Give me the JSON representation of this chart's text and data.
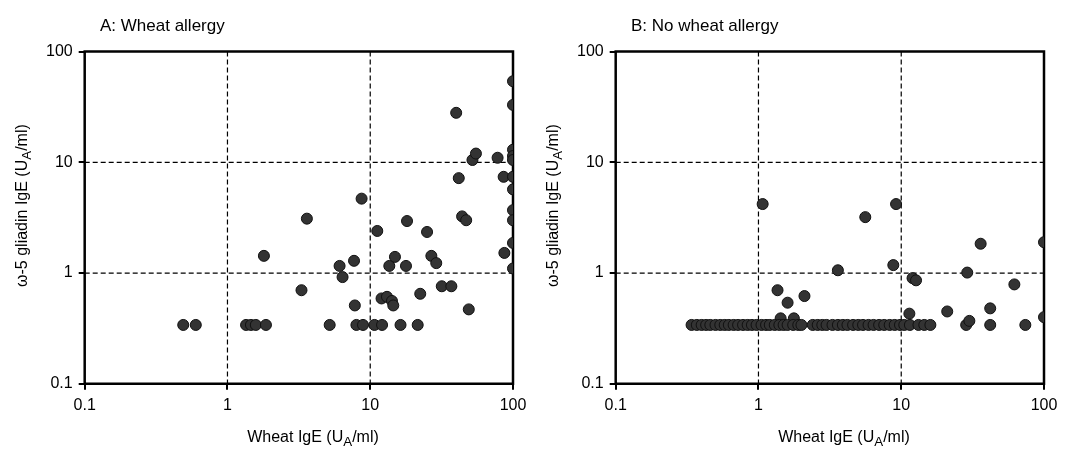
{
  "chart_data": [
    {
      "type": "scatter",
      "title": "A: Wheat allergy",
      "xlabel": "Wheat IgE (U$_{A}$/ml)",
      "ylabel": "ω-5 gliadin IgE (U$_{A}$/ml)",
      "color": "#333333",
      "marker": "circle",
      "log": "xy",
      "grid": true,
      "legend": false,
      "xlim": [
        0.1,
        100
      ],
      "ylim": [
        0.1,
        100
      ],
      "xticks": [
        0.1,
        1,
        10,
        100
      ],
      "yticks": [
        0.1,
        1,
        10,
        100
      ],
      "x": [
        0.49,
        0.6,
        1.35,
        1.46,
        1.58,
        1.86,
        1.8,
        3.6,
        3.3,
        5.2,
        6.1,
        6.4,
        7.7,
        7.8,
        8.0,
        8.9,
        8.7,
        10.7,
        12.1,
        11.2,
        12,
        13.1,
        14.2,
        14.5,
        13.6,
        14.9,
        16.3,
        17.8,
        18.1,
        21.5,
        22.4,
        25,
        26.8,
        29,
        31.7,
        37,
        44,
        47,
        49,
        87,
        40,
        41.7,
        52,
        55,
        78,
        86,
        100,
        100,
        100,
        100,
        100,
        100,
        100,
        100,
        100,
        100,
        100
      ],
      "values": [
        0.34,
        0.34,
        0.34,
        0.34,
        0.34,
        0.34,
        1.43,
        3.1,
        0.7,
        0.34,
        1.16,
        0.92,
        1.29,
        0.51,
        0.34,
        0.34,
        4.7,
        0.34,
        0.34,
        2.4,
        0.59,
        0.61,
        0.56,
        0.51,
        1.16,
        1.4,
        0.34,
        1.16,
        2.95,
        0.34,
        0.65,
        2.35,
        1.43,
        1.23,
        0.76,
        0.76,
        3.25,
        3.0,
        0.47,
        1.52,
        28,
        7.2,
        10.5,
        12,
        11,
        7.4,
        54,
        33,
        13,
        11.4,
        10.5,
        7.4,
        5.7,
        3.7,
        3.0,
        1.87,
        1.1
      ]
    },
    {
      "type": "scatter",
      "title": "B: No wheat allergy",
      "xlabel": "Wheat IgE (U$_{A}$/ml)",
      "ylabel": "ω-5 gliadin IgE (U$_{A}$/ml)",
      "color": "#333333",
      "marker": "circle",
      "log": "xy",
      "grid": true,
      "legend": false,
      "xlim": [
        0.1,
        100
      ],
      "ylim": [
        0.1,
        100
      ],
      "xticks": [
        0.1,
        1,
        10,
        100
      ],
      "yticks": [
        0.1,
        1,
        10,
        100
      ],
      "x": [
        1.07,
        5.6,
        9.2,
        3.6,
        8.8,
        12.0,
        12.7,
        1.36,
        1.6,
        2.1,
        1.43,
        1.77,
        11.4,
        21,
        29,
        36,
        28.5,
        30,
        42,
        42,
        62,
        74,
        100,
        100,
        0.34,
        0.37,
        0.4,
        0.43,
        0.46,
        0.5,
        0.54,
        0.58,
        0.62,
        0.67,
        0.72,
        0.78,
        0.84,
        0.9,
        0.97,
        1.05,
        1.13,
        1.2,
        1.3,
        1.4,
        1.5,
        1.6,
        1.75,
        1.9,
        2.0,
        2.4,
        2.6,
        2.8,
        3.0,
        3.3,
        3.6,
        3.9,
        4.2,
        4.6,
        5.0,
        5.4,
        5.9,
        6.4,
        7.0,
        7.6,
        8.3,
        9.0,
        9.8,
        10.5,
        11.5,
        13.2,
        14.5,
        16
      ],
      "values": [
        4.2,
        3.2,
        4.2,
        1.06,
        1.18,
        0.9,
        0.86,
        0.7,
        0.54,
        0.62,
        0.39,
        0.39,
        0.43,
        0.45,
        1.01,
        1.84,
        0.34,
        0.37,
        0.48,
        0.34,
        0.79,
        0.34,
        1.9,
        0.4,
        0.34,
        0.34,
        0.34,
        0.34,
        0.34,
        0.34,
        0.34,
        0.34,
        0.34,
        0.34,
        0.34,
        0.34,
        0.34,
        0.34,
        0.34,
        0.34,
        0.34,
        0.34,
        0.34,
        0.34,
        0.34,
        0.34,
        0.34,
        0.34,
        0.34,
        0.34,
        0.34,
        0.34,
        0.34,
        0.34,
        0.34,
        0.34,
        0.34,
        0.34,
        0.34,
        0.34,
        0.34,
        0.34,
        0.34,
        0.34,
        0.34,
        0.34,
        0.34,
        0.34,
        0.34,
        0.34,
        0.34,
        0.34
      ]
    }
  ]
}
